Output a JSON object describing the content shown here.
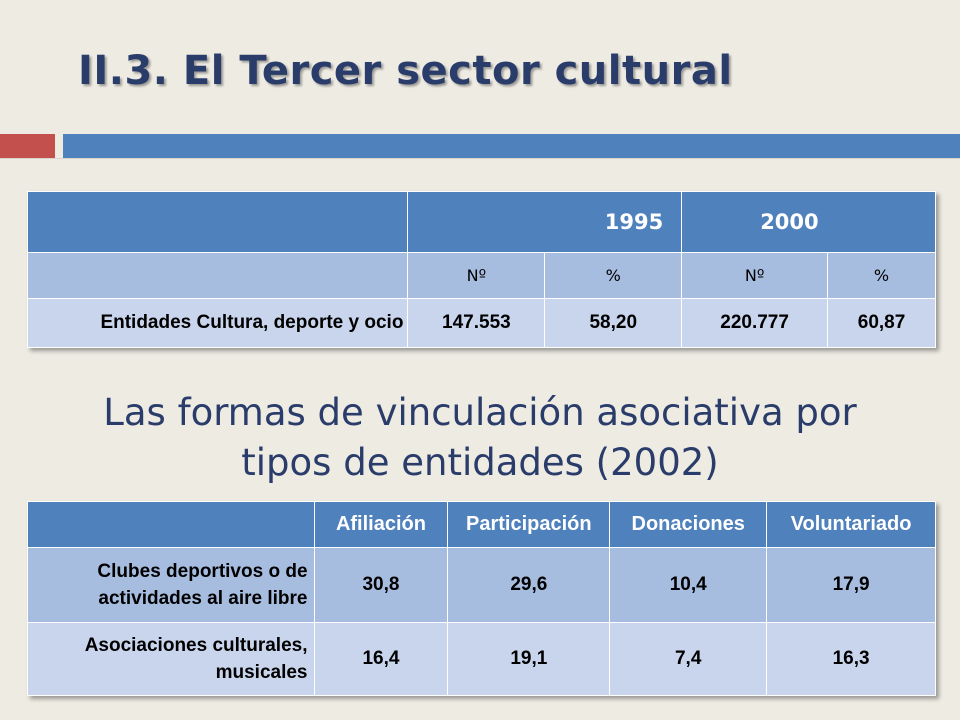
{
  "title": "II.3. El Tercer sector cultural",
  "table1": {
    "years": [
      "1995",
      "2000"
    ],
    "subheaders": [
      "Nº",
      "%",
      "Nº",
      "%"
    ],
    "row": {
      "label": "Entidades Cultura, deporte y ocio",
      "values": [
        "147.553",
        "58,20",
        "220.777",
        "60,87"
      ]
    }
  },
  "subtitle_line1": "Las formas de vinculación asociativa por",
  "subtitle_line2": "tipos de entidades (2002)",
  "table2": {
    "headers": [
      "Afiliación",
      "Participación",
      "Donaciones",
      "Voluntariado"
    ],
    "rows": [
      {
        "label_line1": "Clubes deportivos o de",
        "label_line2": "actividades al aire libre",
        "values": [
          "30,8",
          "29,6",
          "10,4",
          "17,9"
        ]
      },
      {
        "label_line1": "Asociaciones culturales,",
        "label_line2": "musicales",
        "values": [
          "16,4",
          "19,1",
          "7,4",
          "16,3"
        ]
      }
    ]
  },
  "colors": {
    "header_blue": "#4f81bd",
    "accent_red": "#c3504d",
    "title_navy": "#2a3c6a",
    "row_dark": "#a7bde0",
    "row_light": "#c9d5ec"
  }
}
